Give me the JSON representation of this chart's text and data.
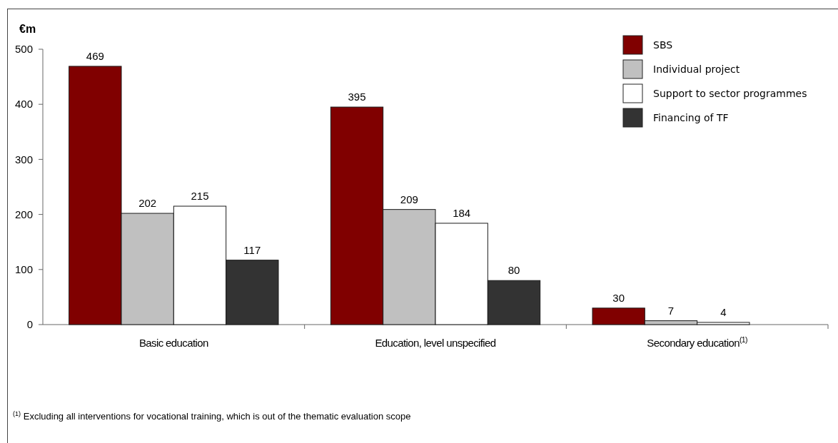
{
  "chart_data": {
    "type": "bar",
    "ylabel": "€m",
    "categories": [
      "Basic education",
      "Education, level unspecified",
      "Secondary education$^{(1)}$"
    ],
    "series": [
      {
        "name": "SBS",
        "color": "#800000",
        "values": [
          469,
          395,
          30
        ]
      },
      {
        "name": "Individual project",
        "color": "#c0c0c0",
        "values": [
          202,
          209,
          7
        ]
      },
      {
        "name": "Support to sector programmes",
        "color": "#ffffff",
        "values": [
          215,
          184,
          4
        ]
      },
      {
        "name": "Financing of TF",
        "color": "#333333",
        "values": [
          117,
          80,
          null
        ]
      }
    ],
    "ylim": [
      0,
      500
    ],
    "yticks": [
      0,
      100,
      200,
      300,
      400,
      500
    ],
    "data_labels": true,
    "legend": "top right",
    "annotations": [
      "$^{(1)}$ Excluding all interventions for vocational training, which is out of the thematic evaluation scope"
    ]
  }
}
